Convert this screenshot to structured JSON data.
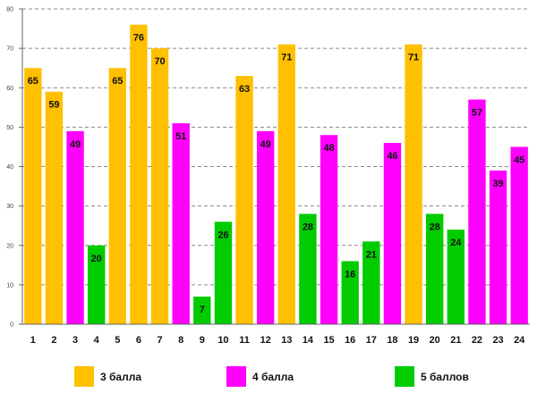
{
  "chart_data": {
    "type": "bar",
    "title": "",
    "xlabel": "",
    "ylabel": "",
    "ylim": [
      0,
      80
    ],
    "yticks": [
      "0",
      "10",
      "20",
      "30",
      "40",
      "50",
      "60",
      "70",
      "80"
    ],
    "grid": true,
    "categories": [
      "1",
      "2",
      "3",
      "4",
      "5",
      "6",
      "7",
      "8",
      "9",
      "10",
      "11",
      "12",
      "13",
      "14",
      "15",
      "16",
      "17",
      "18",
      "19",
      "20",
      "21",
      "22",
      "23",
      "24"
    ],
    "values": [
      65,
      59,
      49,
      20,
      65,
      76,
      70,
      51,
      7,
      26,
      63,
      49,
      71,
      28,
      48,
      16,
      21,
      46,
      71,
      28,
      24,
      57,
      39,
      45
    ],
    "groups": [
      "3",
      "3",
      "4",
      "5",
      "3",
      "3",
      "3",
      "4",
      "5",
      "5",
      "3",
      "4",
      "3",
      "5",
      "4",
      "5",
      "5",
      "4",
      "3",
      "5",
      "5",
      "4",
      "4",
      "4"
    ],
    "series": [
      {
        "key": "3",
        "name": "3 балла",
        "color": "#FFC000"
      },
      {
        "key": "4",
        "name": "4 балла",
        "color": "#FF00FF"
      },
      {
        "key": "5",
        "name": "5 баллов",
        "color": "#00CC00"
      }
    ],
    "legend_position": "bottom"
  }
}
